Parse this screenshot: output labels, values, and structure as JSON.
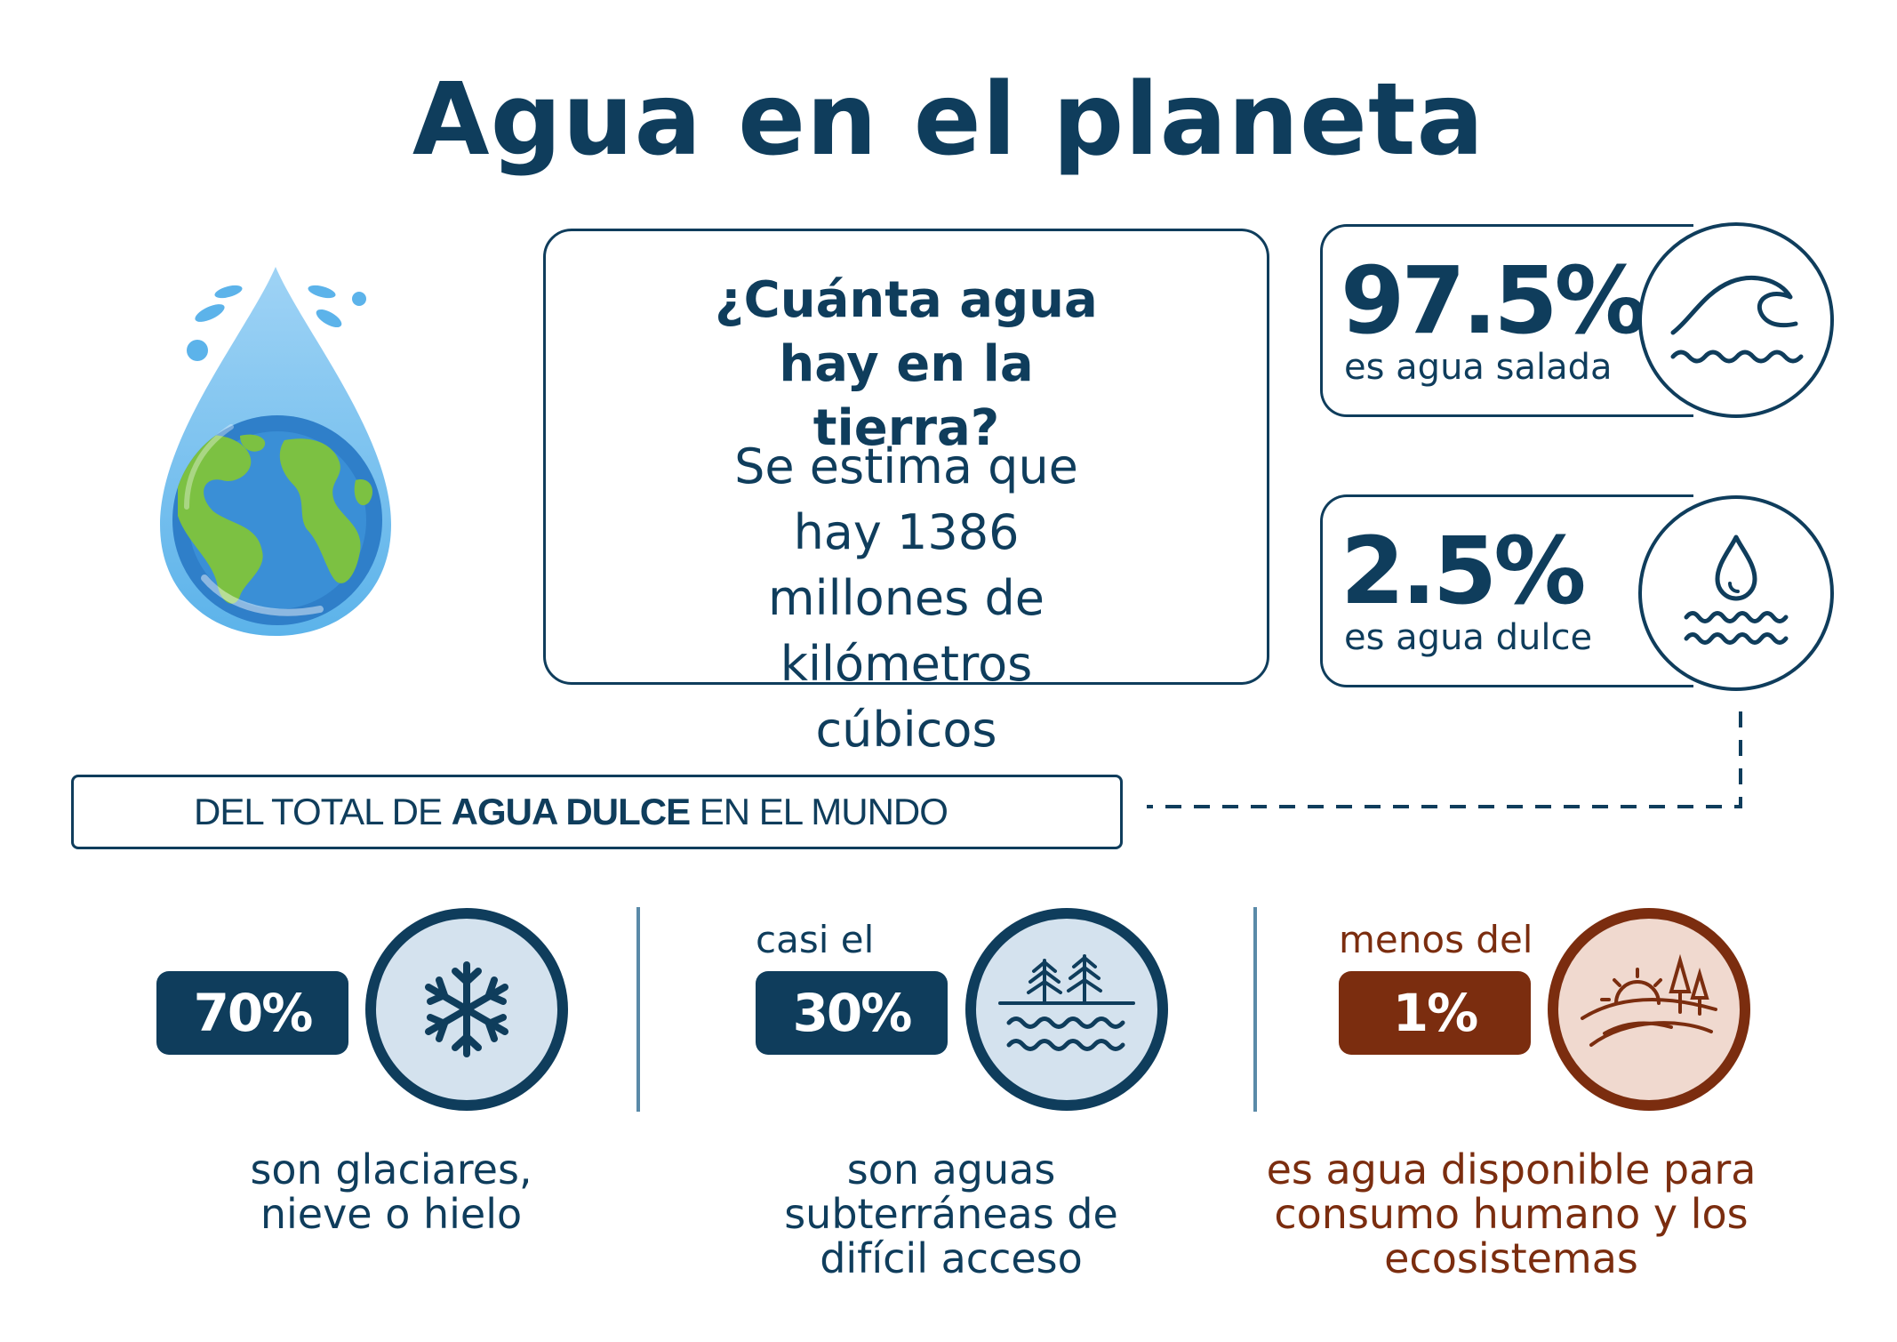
{
  "title": "Agua en el planeta",
  "info": {
    "question": "¿Cuánta agua hay en la tierra?",
    "text": "Se estima que hay 1386 millones de kilómetros cúbicos"
  },
  "stats": [
    {
      "value": "97.5%",
      "label": "es agua salada",
      "icon": "wave-icon"
    },
    {
      "value": "2.5%",
      "label": "es agua dulce",
      "icon": "water-drop-icon"
    }
  ],
  "banner": {
    "prefix": "DEL TOTAL DE ",
    "emphasis": "AGUA DULCE",
    "suffix": " EN EL MUNDO"
  },
  "breakdown": [
    {
      "prefix": "",
      "value": "70%",
      "desc": "son glaciares, nieve o hielo",
      "icon": "snowflake-icon"
    },
    {
      "prefix": "casi el",
      "value": "30%",
      "desc": "son aguas subterráneas de difícil acceso",
      "icon": "underground-water-icon"
    },
    {
      "prefix": "menos del",
      "value": "1%",
      "desc": "es agua disponible para consumo humano y los ecosistemas",
      "icon": "landscape-icon"
    }
  ],
  "colors": {
    "navy": "#0f3d5c",
    "brown": "#7b2d0f",
    "light_blue_fill": "#d4e2ee",
    "light_brown_fill": "#f0d9cf"
  }
}
